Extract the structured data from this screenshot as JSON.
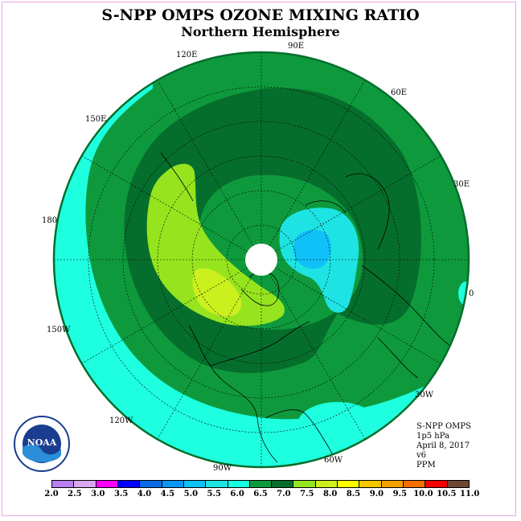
{
  "title": "S-NPP OMPS OZONE MIXING RATIO",
  "subtitle": "Northern Hemisphere",
  "longitude_labels": {
    "lon_90e": "90E",
    "lon_60e": "60E",
    "lon_30e": "30E",
    "lon_0": "0",
    "lon_120e": "120E",
    "lon_150e": "150E",
    "lon_180": "180",
    "lon_150w": "150W",
    "lon_120w": "120W",
    "lon_90w": "90W",
    "lon_60w": "60W",
    "lon_30w": "30W"
  },
  "info": {
    "instrument": "S-NPP OMPS",
    "level": "1p5 hPa",
    "date": "April 8, 2017",
    "version": "v6",
    "units": "PPM"
  },
  "colorbar": {
    "ticks": [
      "2.0",
      "2.5",
      "3.0",
      "3.5",
      "4.0",
      "4.5",
      "5.0",
      "5.5",
      "6.0",
      "6.5",
      "7.0",
      "7.5",
      "8.0",
      "8.5",
      "9.0",
      "9.5",
      "10.0",
      "10.5",
      "11.0"
    ],
    "colors": [
      "#b77ff0",
      "#d9a6f0",
      "#ff00ff",
      "#0000ff",
      "#0a6ae6",
      "#0a96f5",
      "#10c0f8",
      "#1ee3e3",
      "#1aff e0",
      "#0e9a3c",
      "#066e2c",
      "#96e41e",
      "#ccf01e",
      "#ffff00",
      "#f5c800",
      "#f5a000",
      "#f56e00",
      "#f50000",
      "#6e4632"
    ]
  },
  "logo": {
    "name": "noaa-logo",
    "text": "NOAA"
  },
  "map": {
    "colors": {
      "ocean_cyan": "#1effe0",
      "green_6_6_5": "#0e9a3c",
      "dark_green_6_5_7": "#066e2c",
      "lime_7_5_8": "#96e41e",
      "yellow_green_8_8_5": "#ccf01e",
      "blue_5_5_6": "#1ee3e3",
      "lighter_blue_5_5_5": "#10c0f8",
      "pole_white": "#ffffff"
    }
  }
}
